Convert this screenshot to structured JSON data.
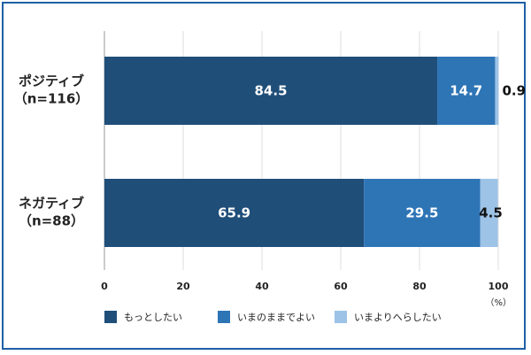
{
  "chart_data": {
    "type": "bar",
    "orientation": "horizontal",
    "stacked": true,
    "categories": [
      {
        "line1": "ポジティブ",
        "line2": "（n=116）"
      },
      {
        "line1": "ネガティブ",
        "line2": "（n=88）"
      }
    ],
    "series": [
      {
        "name": "もっとしたい",
        "color": "#1f4e79",
        "label_color": "#ffffff",
        "values": [
          84.5,
          65.9
        ]
      },
      {
        "name": "いまのままでよい",
        "color": "#2e75b6",
        "label_color": "#ffffff",
        "values": [
          14.7,
          29.5
        ]
      },
      {
        "name": "いまよりへらしたい",
        "color": "#9dc3e6",
        "label_color": "#111111",
        "values": [
          0.9,
          4.5
        ]
      }
    ],
    "xlim": [
      0,
      100
    ],
    "xticks": [
      0,
      20,
      40,
      60,
      80,
      100
    ],
    "xunit": "（%）",
    "grid": true,
    "legend": "bottom"
  }
}
